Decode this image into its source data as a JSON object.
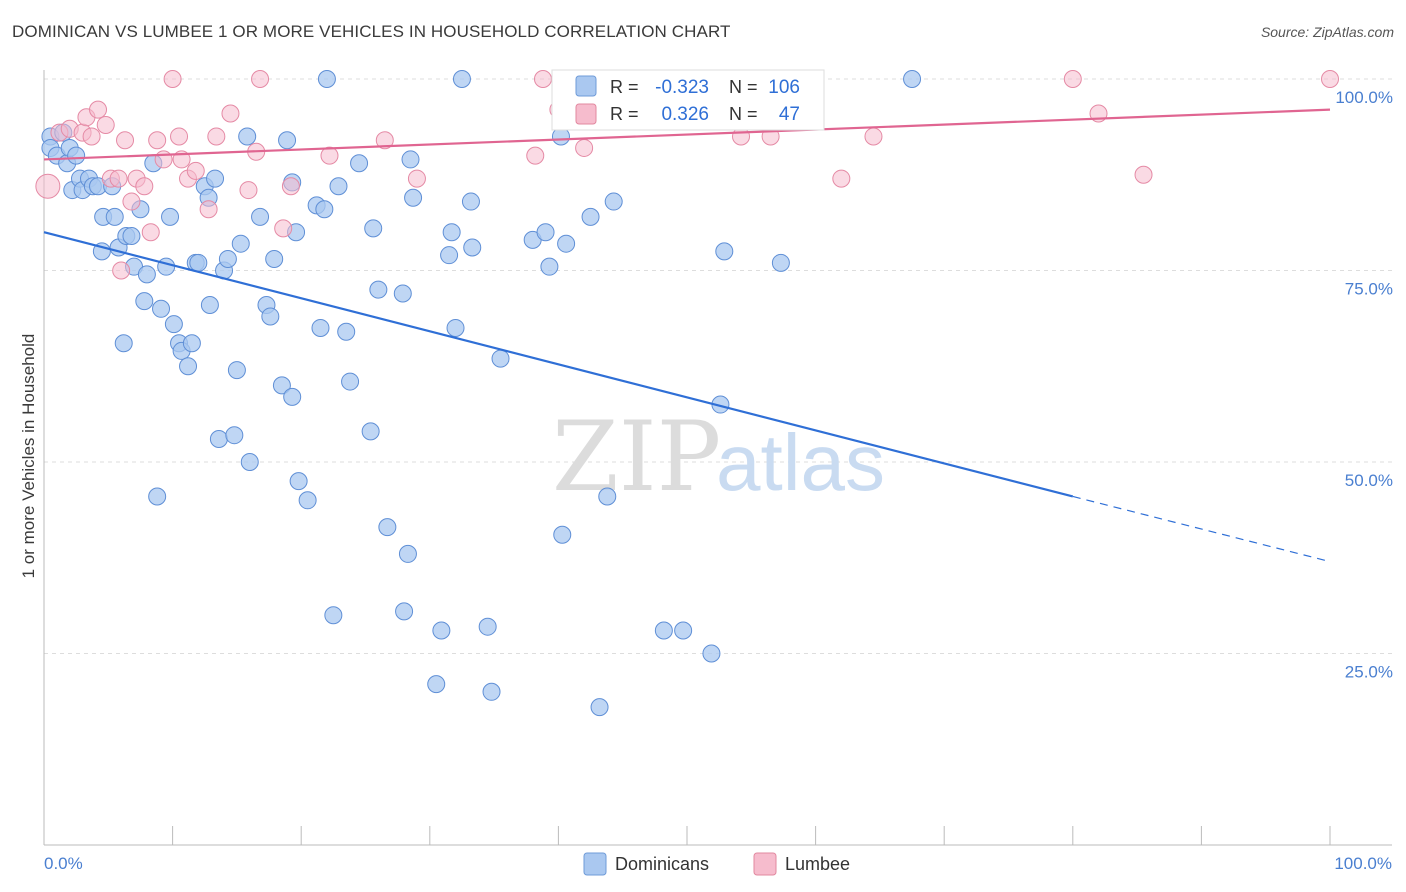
{
  "header": {
    "title": "DOMINICAN VS LUMBEE 1 OR MORE VEHICLES IN HOUSEHOLD CORRELATION CHART",
    "source": "Source: ZipAtlas.com"
  },
  "watermark": {
    "part1": "ZIP",
    "part2": "atlas"
  },
  "legend": {
    "rows": [
      {
        "r_label": "R =",
        "r_value": "-0.323",
        "n_label": "N =",
        "n_value": "106",
        "color": "#aac8f0",
        "stroke": "#6f9bd8"
      },
      {
        "r_label": "R =",
        "r_value": "0.326",
        "n_label": "N =",
        "n_value": "47",
        "color": "#f6bccd",
        "stroke": "#e2889f"
      }
    ]
  },
  "bottom_legend": {
    "items": [
      {
        "label": "Dominicans",
        "color": "#aac8f0",
        "stroke": "#6f9bd8"
      },
      {
        "label": "Lumbee",
        "color": "#f6bccd",
        "stroke": "#e2889f"
      }
    ]
  },
  "colors": {
    "blue_fill": "#aac8f0",
    "blue_stroke": "#5f8fd6",
    "blue_line": "#2f6fd6",
    "pink_fill": "#f6bccd",
    "pink_stroke": "#e58aa5",
    "pink_line": "#e06591",
    "grid": "#dddddd",
    "axis_text": "#4a7fd0"
  },
  "chart_data": {
    "type": "scatter",
    "title": "DOMINICAN VS LUMBEE 1 OR MORE VEHICLES IN HOUSEHOLD CORRELATION CHART",
    "xlabel": "",
    "ylabel": "1 or more Vehicles in Household",
    "xlim": [
      0,
      100
    ],
    "ylim": [
      0,
      100
    ],
    "x_tick_labels": [
      "0.0%",
      "100.0%"
    ],
    "y_ticks": [
      25,
      50,
      75,
      100
    ],
    "y_tick_labels": [
      "25.0%",
      "50.0%",
      "75.0%",
      "100.0%"
    ],
    "grid": true,
    "legend_position": "top-center",
    "series": [
      {
        "name": "Dominicans",
        "r": -0.323,
        "n": 106,
        "trend": {
          "x0": 0,
          "y0": 80.0,
          "x1": 80,
          "y1": 45.5,
          "dashed_to_x": 100,
          "dashed_to_y": 37.0
        },
        "points": [
          [
            0.5,
            92.5
          ],
          [
            0.5,
            91.0
          ],
          [
            1.0,
            90.0
          ],
          [
            1.5,
            93.0
          ],
          [
            1.8,
            89.0
          ],
          [
            2.0,
            91.0
          ],
          [
            2.2,
            85.5
          ],
          [
            2.5,
            90.0
          ],
          [
            2.8,
            87.0
          ],
          [
            3.0,
            85.5
          ],
          [
            3.5,
            87.0
          ],
          [
            3.8,
            86.0
          ],
          [
            4.2,
            86.0
          ],
          [
            4.5,
            77.5
          ],
          [
            4.6,
            82.0
          ],
          [
            5.3,
            86.0
          ],
          [
            5.5,
            82.0
          ],
          [
            5.8,
            78.0
          ],
          [
            6.2,
            65.5
          ],
          [
            6.4,
            79.5
          ],
          [
            6.8,
            79.5
          ],
          [
            7.0,
            75.5
          ],
          [
            7.5,
            83.0
          ],
          [
            7.8,
            71.0
          ],
          [
            8.0,
            74.5
          ],
          [
            8.5,
            89.0
          ],
          [
            8.8,
            45.5
          ],
          [
            9.1,
            70.0
          ],
          [
            9.5,
            75.5
          ],
          [
            9.8,
            82.0
          ],
          [
            10.1,
            68.0
          ],
          [
            10.5,
            65.5
          ],
          [
            10.7,
            64.5
          ],
          [
            11.2,
            62.5
          ],
          [
            11.5,
            65.5
          ],
          [
            11.8,
            76.0
          ],
          [
            12.0,
            76.0
          ],
          [
            12.5,
            86.0
          ],
          [
            12.8,
            84.5
          ],
          [
            12.9,
            70.5
          ],
          [
            13.3,
            87.0
          ],
          [
            13.6,
            53.0
          ],
          [
            14.0,
            75.0
          ],
          [
            14.3,
            76.5
          ],
          [
            14.8,
            53.5
          ],
          [
            15.0,
            62.0
          ],
          [
            15.3,
            78.5
          ],
          [
            15.8,
            92.5
          ],
          [
            16.0,
            50.0
          ],
          [
            16.8,
            82.0
          ],
          [
            17.3,
            70.5
          ],
          [
            17.6,
            69.0
          ],
          [
            17.9,
            76.5
          ],
          [
            18.5,
            60.0
          ],
          [
            18.9,
            92.0
          ],
          [
            19.3,
            58.5
          ],
          [
            19.3,
            86.5
          ],
          [
            19.6,
            80.0
          ],
          [
            19.8,
            47.5
          ],
          [
            20.5,
            45.0
          ],
          [
            21.2,
            83.5
          ],
          [
            21.5,
            67.5
          ],
          [
            21.8,
            83.0
          ],
          [
            22.0,
            100.0
          ],
          [
            22.5,
            30.0
          ],
          [
            22.9,
            86.0
          ],
          [
            23.5,
            67.0
          ],
          [
            23.8,
            60.5
          ],
          [
            24.5,
            89.0
          ],
          [
            25.4,
            54.0
          ],
          [
            25.6,
            80.5
          ],
          [
            26.0,
            72.5
          ],
          [
            26.7,
            41.5
          ],
          [
            27.9,
            72.0
          ],
          [
            28.0,
            30.5
          ],
          [
            28.3,
            38.0
          ],
          [
            28.5,
            89.5
          ],
          [
            28.7,
            84.5
          ],
          [
            30.5,
            21.0
          ],
          [
            30.9,
            28.0
          ],
          [
            31.5,
            77.0
          ],
          [
            31.7,
            80.0
          ],
          [
            32.0,
            67.5
          ],
          [
            32.5,
            100.0
          ],
          [
            33.2,
            84.0
          ],
          [
            33.3,
            78.0
          ],
          [
            34.5,
            28.5
          ],
          [
            34.8,
            20.0
          ],
          [
            35.5,
            63.5
          ],
          [
            38.0,
            79.0
          ],
          [
            39.0,
            80.0
          ],
          [
            39.3,
            75.5
          ],
          [
            40.2,
            92.5
          ],
          [
            40.3,
            40.5
          ],
          [
            40.6,
            78.5
          ],
          [
            42.5,
            82.0
          ],
          [
            43.2,
            18.0
          ],
          [
            43.8,
            45.5
          ],
          [
            44.3,
            84.0
          ],
          [
            48.2,
            28.0
          ],
          [
            49.7,
            28.0
          ],
          [
            51.9,
            25.0
          ],
          [
            52.6,
            57.5
          ],
          [
            52.9,
            77.5
          ],
          [
            57.3,
            76.0
          ],
          [
            67.5,
            100.0
          ]
        ]
      },
      {
        "name": "Lumbee",
        "r": 0.326,
        "n": 47,
        "trend": {
          "x0": 0,
          "y0": 89.5,
          "x1": 100,
          "y1": 96.0
        },
        "points": [
          [
            0.3,
            86.0
          ],
          [
            1.2,
            93.0
          ],
          [
            2.0,
            93.5
          ],
          [
            3.0,
            93.0
          ],
          [
            3.3,
            95.0
          ],
          [
            3.7,
            92.5
          ],
          [
            4.2,
            96.0
          ],
          [
            4.8,
            94.0
          ],
          [
            5.2,
            87.0
          ],
          [
            5.8,
            87.0
          ],
          [
            6.0,
            75.0
          ],
          [
            6.3,
            92.0
          ],
          [
            6.8,
            84.0
          ],
          [
            7.2,
            87.0
          ],
          [
            7.8,
            86.0
          ],
          [
            8.3,
            80.0
          ],
          [
            8.8,
            92.0
          ],
          [
            9.3,
            89.5
          ],
          [
            10.0,
            100.0
          ],
          [
            10.5,
            92.5
          ],
          [
            10.7,
            89.5
          ],
          [
            11.2,
            87.0
          ],
          [
            11.8,
            88.0
          ],
          [
            12.8,
            83.0
          ],
          [
            13.4,
            92.5
          ],
          [
            14.5,
            95.5
          ],
          [
            15.9,
            85.5
          ],
          [
            16.5,
            90.5
          ],
          [
            16.8,
            100.0
          ],
          [
            18.6,
            80.5
          ],
          [
            19.2,
            86.0
          ],
          [
            22.2,
            90.0
          ],
          [
            26.5,
            92.0
          ],
          [
            29.0,
            87.0
          ],
          [
            38.2,
            90.0
          ],
          [
            38.8,
            100.0
          ],
          [
            40.0,
            96.0
          ],
          [
            42.0,
            91.0
          ],
          [
            50.3,
            98.0
          ],
          [
            54.2,
            92.5
          ],
          [
            56.5,
            92.5
          ],
          [
            62.0,
            87.0
          ],
          [
            64.5,
            92.5
          ],
          [
            80.0,
            100.0
          ],
          [
            82.0,
            95.5
          ],
          [
            85.5,
            87.5
          ],
          [
            100.0,
            100.0
          ]
        ]
      }
    ]
  }
}
